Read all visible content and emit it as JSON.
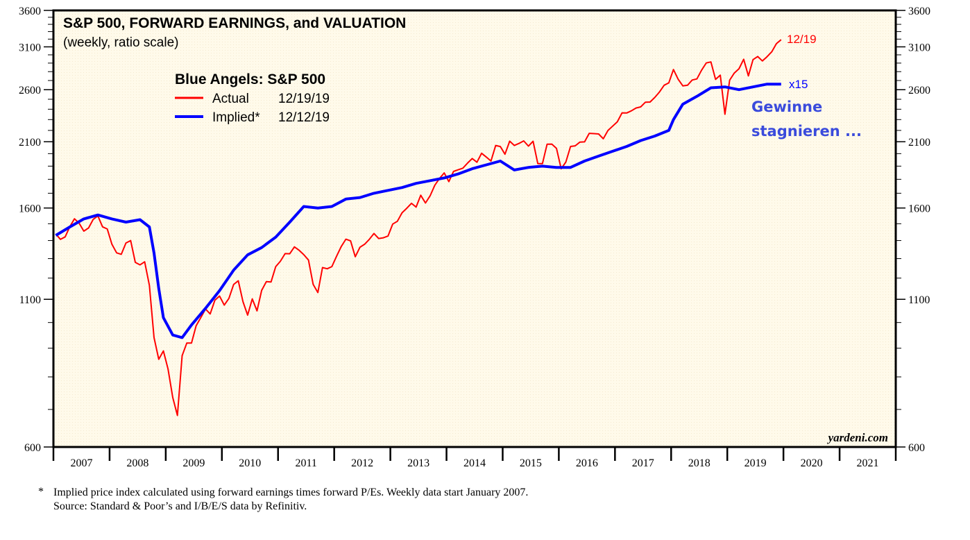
{
  "chart_data": {
    "type": "line",
    "title": "S&P 500, FORWARD EARNINGS, and VALUATION",
    "subtitle": "(weekly, ratio scale)",
    "legend": {
      "title": "Blue Angels: S&P 500",
      "placement": "top-left",
      "entries": [
        {
          "label": "Actual",
          "date": "12/19/19",
          "color": "#ff0000"
        },
        {
          "label": "Implied*",
          "date": "12/12/19",
          "color": "#0000ff"
        }
      ]
    },
    "y_scale": "log",
    "ylim": [
      600,
      3600
    ],
    "y_ticks": [
      600,
      1100,
      1600,
      2100,
      2600,
      3100,
      3600
    ],
    "y_tick_labels": [
      "600",
      "1100",
      "1600",
      "2100",
      "2600",
      "3100",
      "3600"
    ],
    "xlim": [
      "2007-01",
      "2021-12"
    ],
    "x_tick_labels": [
      "2007",
      "2008",
      "2009",
      "2010",
      "2011",
      "2012",
      "2013",
      "2014",
      "2015",
      "2016",
      "2017",
      "2018",
      "2019",
      "2020",
      "2021"
    ],
    "grid": false,
    "series": [
      {
        "name": "Actual",
        "color": "#ff0000",
        "x": [
          "2007-01",
          "2007-02",
          "2007-03",
          "2007-04",
          "2007-05",
          "2007-06",
          "2007-07",
          "2007-08",
          "2007-09",
          "2007-10",
          "2007-11",
          "2007-12",
          "2008-01",
          "2008-02",
          "2008-03",
          "2008-04",
          "2008-05",
          "2008-06",
          "2008-07",
          "2008-08",
          "2008-09",
          "2008-10",
          "2008-11",
          "2008-12",
          "2009-01",
          "2009-02",
          "2009-03",
          "2009-04",
          "2009-05",
          "2009-06",
          "2009-07",
          "2009-08",
          "2009-09",
          "2009-10",
          "2009-11",
          "2009-12",
          "2010-01",
          "2010-02",
          "2010-03",
          "2010-04",
          "2010-05",
          "2010-06",
          "2010-07",
          "2010-08",
          "2010-09",
          "2010-10",
          "2010-11",
          "2010-12",
          "2011-01",
          "2011-02",
          "2011-03",
          "2011-04",
          "2011-05",
          "2011-06",
          "2011-07",
          "2011-08",
          "2011-09",
          "2011-10",
          "2011-11",
          "2011-12",
          "2012-01",
          "2012-02",
          "2012-03",
          "2012-04",
          "2012-05",
          "2012-06",
          "2012-07",
          "2012-08",
          "2012-09",
          "2012-10",
          "2012-11",
          "2012-12",
          "2013-01",
          "2013-02",
          "2013-03",
          "2013-04",
          "2013-05",
          "2013-06",
          "2013-07",
          "2013-08",
          "2013-09",
          "2013-10",
          "2013-11",
          "2013-12",
          "2014-01",
          "2014-02",
          "2014-03",
          "2014-04",
          "2014-05",
          "2014-06",
          "2014-07",
          "2014-08",
          "2014-09",
          "2014-10",
          "2014-11",
          "2014-12",
          "2015-01",
          "2015-02",
          "2015-03",
          "2015-04",
          "2015-05",
          "2015-06",
          "2015-07",
          "2015-08",
          "2015-09",
          "2015-10",
          "2015-11",
          "2015-12",
          "2016-01",
          "2016-02",
          "2016-03",
          "2016-04",
          "2016-05",
          "2016-06",
          "2016-07",
          "2016-08",
          "2016-09",
          "2016-10",
          "2016-11",
          "2016-12",
          "2017-01",
          "2017-02",
          "2017-03",
          "2017-04",
          "2017-05",
          "2017-06",
          "2017-07",
          "2017-08",
          "2017-09",
          "2017-10",
          "2017-11",
          "2017-12",
          "2018-01",
          "2018-02",
          "2018-03",
          "2018-04",
          "2018-05",
          "2018-06",
          "2018-07",
          "2018-08",
          "2018-09",
          "2018-10",
          "2018-11",
          "2018-12",
          "2019-01",
          "2019-02",
          "2019-03",
          "2019-04",
          "2019-05",
          "2019-06",
          "2019-07",
          "2019-08",
          "2019-09",
          "2019-10",
          "2019-11",
          "2019-12"
        ],
        "values": [
          1438,
          1407,
          1421,
          1482,
          1531,
          1503,
          1455,
          1474,
          1527,
          1549,
          1481,
          1468,
          1379,
          1331,
          1323,
          1386,
          1400,
          1280,
          1267,
          1283,
          1165,
          940,
          860,
          890,
          826,
          735,
          683,
          873,
          919,
          919,
          987,
          1021,
          1057,
          1036,
          1096,
          1115,
          1074,
          1104,
          1169,
          1187,
          1089,
          1031,
          1102,
          1049,
          1141,
          1183,
          1181,
          1258,
          1286,
          1327,
          1326,
          1364,
          1345,
          1321,
          1292,
          1170,
          1131,
          1253,
          1247,
          1258,
          1312,
          1366,
          1408,
          1398,
          1310,
          1362,
          1379,
          1407,
          1441,
          1412,
          1416,
          1426,
          1498,
          1515,
          1569,
          1598,
          1631,
          1606,
          1686,
          1633,
          1682,
          1757,
          1806,
          1848,
          1783,
          1859,
          1872,
          1884,
          1924,
          1960,
          1931,
          2003,
          1972,
          1940,
          2068,
          2059,
          1995,
          2105,
          2068,
          2086,
          2107,
          2063,
          2104,
          1920,
          1920,
          2079,
          2080,
          2044,
          1880,
          1932,
          2060,
          2065,
          2097,
          2099,
          2174,
          2171,
          2168,
          2126,
          2199,
          2239,
          2279,
          2364,
          2363,
          2384,
          2412,
          2423,
          2470,
          2472,
          2519,
          2575,
          2648,
          2674,
          2824,
          2714,
          2641,
          2648,
          2705,
          2718,
          2816,
          2902,
          2914,
          2712,
          2760,
          2351,
          2704,
          2784,
          2834,
          2946,
          2752,
          2942,
          2980,
          2926,
          2977,
          3038,
          3141,
          3192
        ]
      },
      {
        "name": "Implied*",
        "color": "#0000ff",
        "x": [
          "2007-01",
          "2007-04",
          "2007-07",
          "2007-10",
          "2008-01",
          "2008-04",
          "2008-07",
          "2008-09",
          "2008-10",
          "2008-11",
          "2008-12",
          "2009-02",
          "2009-04",
          "2009-06",
          "2009-09",
          "2009-12",
          "2010-03",
          "2010-06",
          "2010-09",
          "2010-12",
          "2011-03",
          "2011-06",
          "2011-09",
          "2011-12",
          "2012-03",
          "2012-06",
          "2012-09",
          "2012-12",
          "2013-03",
          "2013-06",
          "2013-09",
          "2013-12",
          "2014-03",
          "2014-06",
          "2014-09",
          "2014-12",
          "2015-03",
          "2015-06",
          "2015-09",
          "2015-12",
          "2016-03",
          "2016-06",
          "2016-09",
          "2016-12",
          "2017-03",
          "2017-06",
          "2017-09",
          "2017-12",
          "2018-01",
          "2018-03",
          "2018-06",
          "2018-09",
          "2018-12",
          "2019-03",
          "2019-06",
          "2019-09",
          "2019-12"
        ],
        "values": [
          1430,
          1480,
          1530,
          1555,
          1530,
          1510,
          1525,
          1480,
          1330,
          1150,
          1020,
          950,
          940,
          990,
          1060,
          1140,
          1240,
          1320,
          1360,
          1420,
          1510,
          1610,
          1600,
          1610,
          1660,
          1670,
          1700,
          1720,
          1740,
          1770,
          1790,
          1810,
          1840,
          1880,
          1910,
          1940,
          1870,
          1890,
          1900,
          1890,
          1890,
          1940,
          1980,
          2020,
          2060,
          2110,
          2150,
          2200,
          2300,
          2450,
          2530,
          2620,
          2630,
          2600,
          2630,
          2660,
          2660
        ]
      }
    ],
    "annotations": {
      "actual_end": "12/19",
      "implied_multiplier": "x15",
      "comment_line1": "Gewinne",
      "comment_line2": "stagnieren ...",
      "watermark": "yardeni.com"
    }
  },
  "footnote": {
    "marker": "*",
    "line1": "Implied price index calculated using forward earnings times forward P/Es. Weekly data start January 2007.",
    "line2": "Source: Standard & Poor’s and I/B/E/S data by Refinitiv."
  }
}
